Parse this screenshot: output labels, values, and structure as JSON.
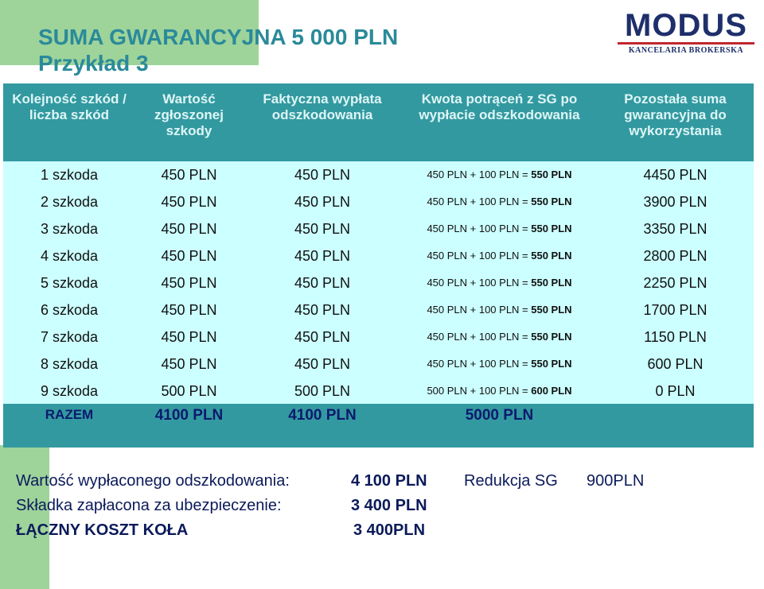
{
  "title_line1": "SUMA GWARANCYJNA 5 000 PLN",
  "title_line2": "Przykład 3",
  "logo": {
    "name": "MODUS",
    "tagline": "KANCELARIA BROKERSKA",
    "brand_color": "#1e2f6b",
    "accent_color": "#c0272d"
  },
  "table": {
    "headers": [
      "Kolejność szkód / liczba szkód",
      "Wartość zgłoszonej szkody",
      "Faktyczna wypłata odszkodowania",
      "Kwota potrąceń z SG po wypłacie odszkodowania",
      "Pozostała  suma gwarancyjna do wykorzystania"
    ],
    "rows": [
      {
        "claim": "1 szkoda",
        "reported": "450 PLN",
        "paid": "450 PLN",
        "deduction": "450 PLN + 100 PLN = ",
        "deduction_total": "550 PLN",
        "remaining": "4450 PLN"
      },
      {
        "claim": "2 szkoda",
        "reported": "450 PLN",
        "paid": "450 PLN",
        "deduction": "450 PLN + 100 PLN = ",
        "deduction_total": "550 PLN",
        "remaining": "3900 PLN"
      },
      {
        "claim": "3 szkoda",
        "reported": "450 PLN",
        "paid": "450 PLN",
        "deduction": "450 PLN + 100 PLN = ",
        "deduction_total": "550 PLN",
        "remaining": "3350 PLN"
      },
      {
        "claim": "4 szkoda",
        "reported": "450 PLN",
        "paid": "450 PLN",
        "deduction": "450 PLN + 100 PLN = ",
        "deduction_total": "550 PLN",
        "remaining": "2800 PLN"
      },
      {
        "claim": "5 szkoda",
        "reported": "450 PLN",
        "paid": "450 PLN",
        "deduction": "450 PLN + 100 PLN = ",
        "deduction_total": "550 PLN",
        "remaining": "2250 PLN"
      },
      {
        "claim": "6 szkoda",
        "reported": "450 PLN",
        "paid": "450 PLN",
        "deduction": "450 PLN + 100 PLN = ",
        "deduction_total": "550 PLN",
        "remaining": "1700 PLN"
      },
      {
        "claim": "7 szkoda",
        "reported": "450 PLN",
        "paid": "450 PLN",
        "deduction": "450 PLN + 100 PLN = ",
        "deduction_total": "550 PLN",
        "remaining": "1150 PLN"
      },
      {
        "claim": "8 szkoda",
        "reported": "450 PLN",
        "paid": "450 PLN",
        "deduction": "450 PLN + 100 PLN = ",
        "deduction_total": "550 PLN",
        "remaining": "600 PLN"
      },
      {
        "claim": "9 szkoda",
        "reported": "500 PLN",
        "paid": "500 PLN",
        "deduction": "500 PLN + 100 PLN = ",
        "deduction_total": "600 PLN",
        "remaining": "0 PLN"
      }
    ],
    "footer": {
      "label": "RAZEM",
      "reported_total": "4100 PLN",
      "paid_total": "4100 PLN",
      "deduction_total": "5000 PLN"
    }
  },
  "summary": {
    "paid_label": "Wartość wypłaconego odszkodowania:",
    "paid_value": "4 100 PLN",
    "reduction_label": "Redukcja SG",
    "reduction_value": "900PLN",
    "premium_label": "Składka zapłacona za ubezpieczenie:",
    "premium_value": "3 400 PLN",
    "total_label": "ŁĄCZNY KOSZT KOŁA",
    "total_value": "3 400PLN"
  },
  "colors": {
    "header_bg": "#3399a0",
    "table_bg": "#ccffff",
    "title": "#2a8a9a",
    "deco": "#9ed39a"
  }
}
